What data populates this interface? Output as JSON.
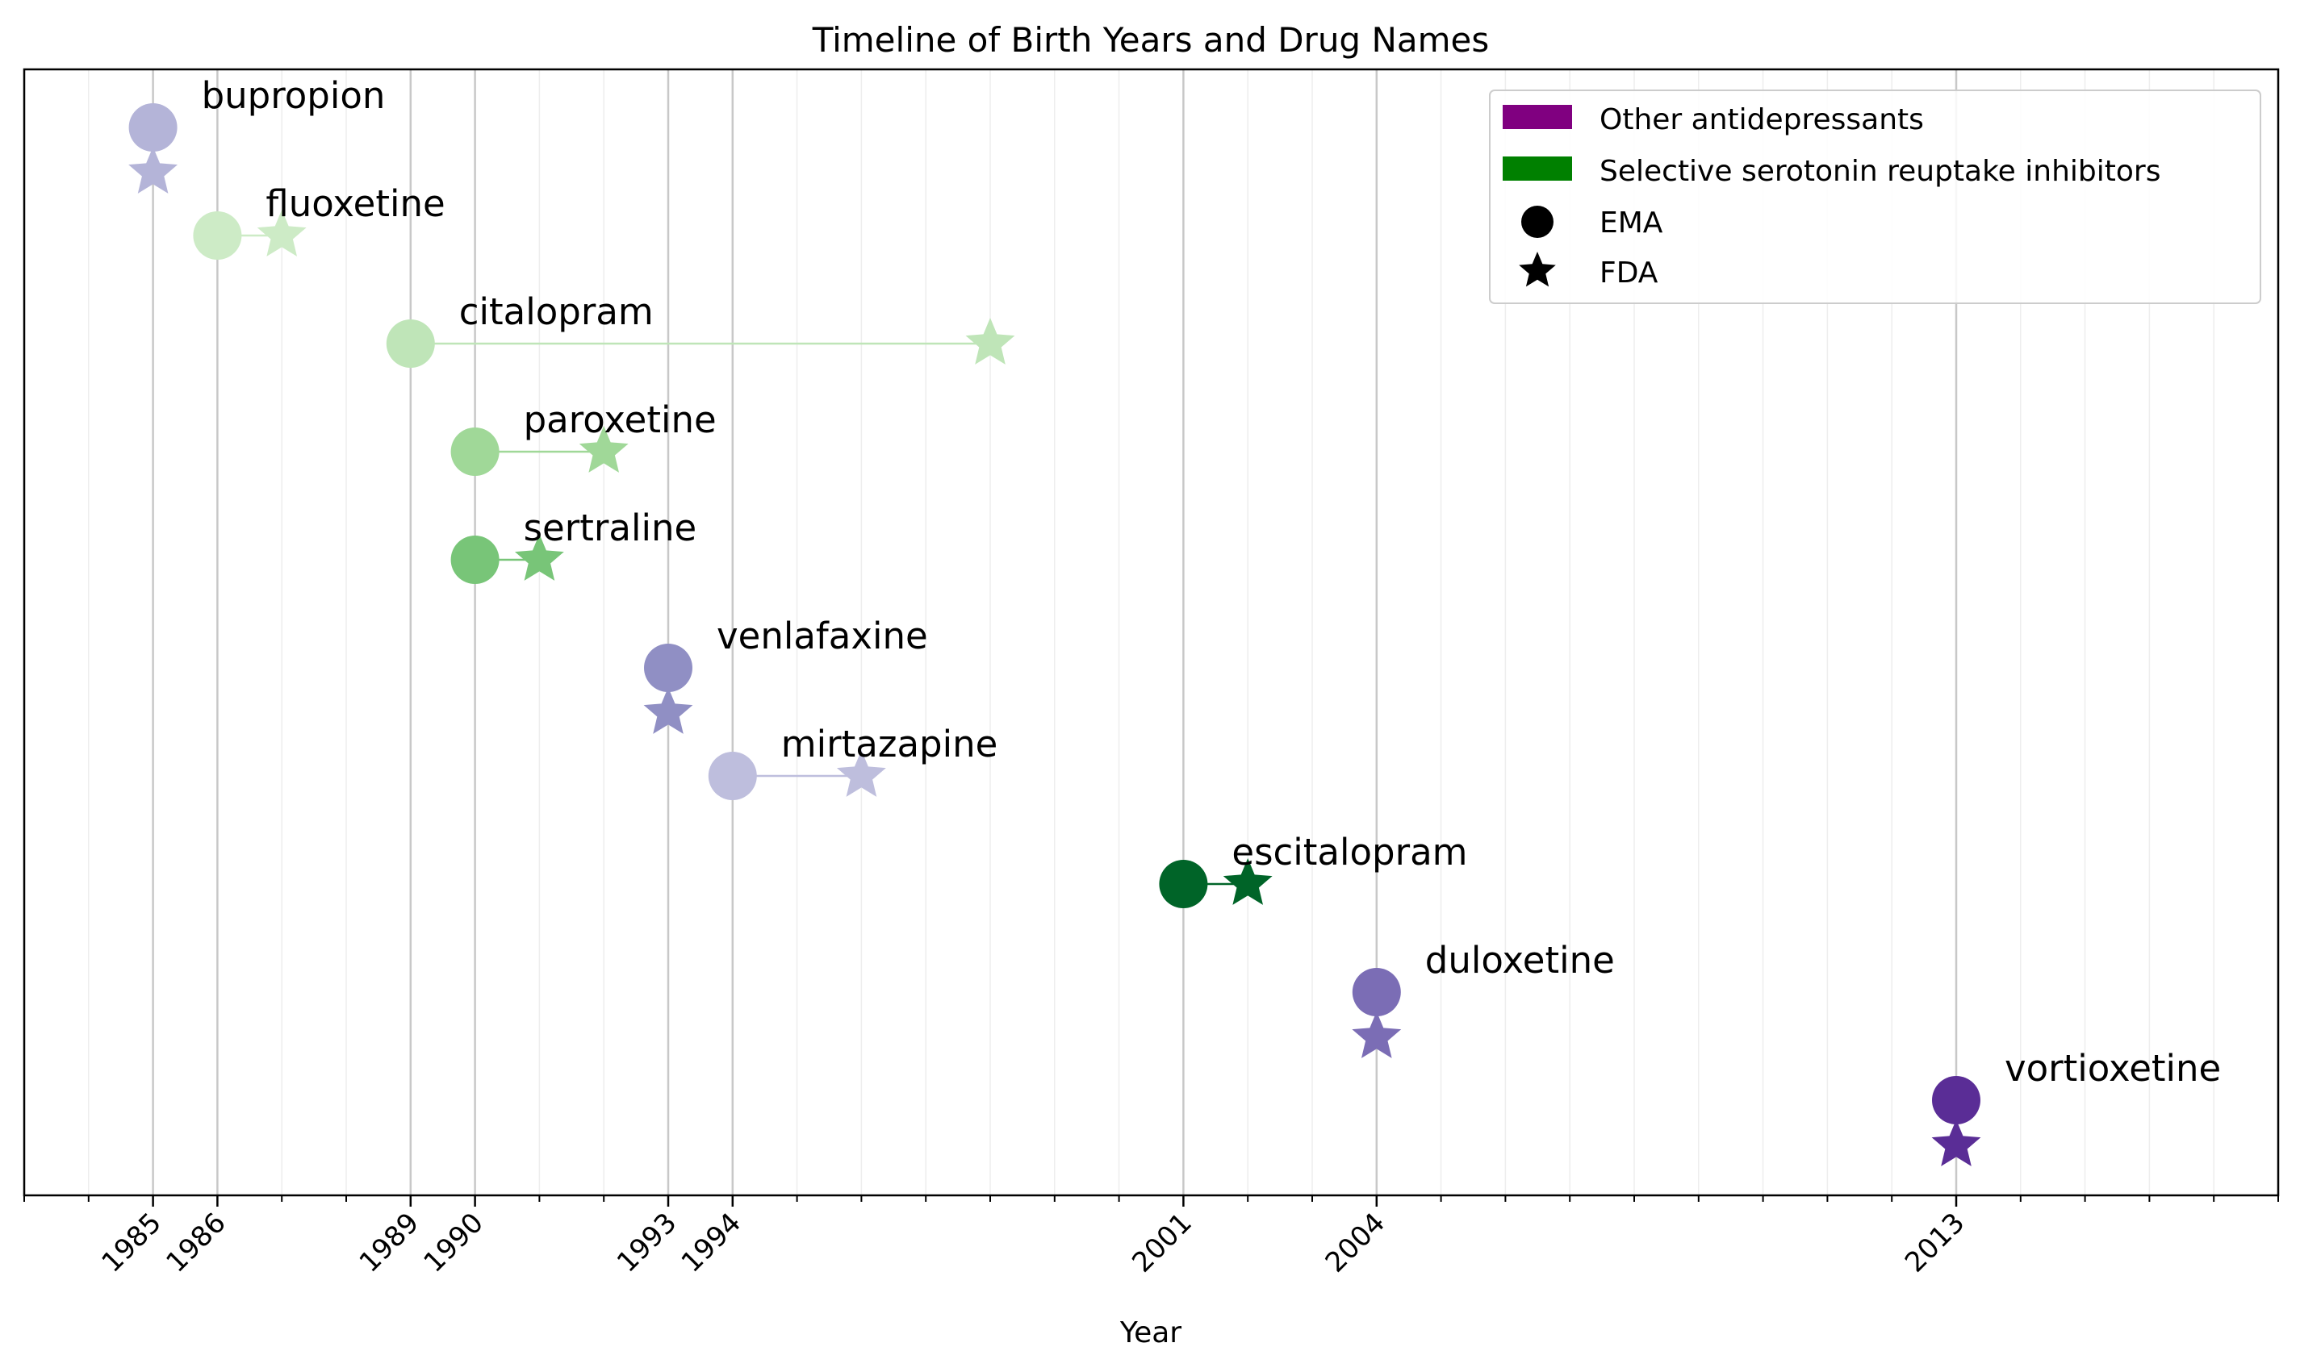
{
  "chart_data": {
    "type": "scatter",
    "title": "Timeline of Birth Years and Drug Names",
    "xlabel": "Year",
    "ylabel": "",
    "xlim": [
      1983,
      2018
    ],
    "x_ticks": [
      "1985",
      "1986",
      "1989",
      "1990",
      "1993",
      "1994",
      "2001",
      "2004",
      "2013"
    ],
    "grid": "vertical",
    "legend_position": "top-right",
    "legend": [
      {
        "label": "Other antidepressants",
        "kind": "patch",
        "color": "#800080"
      },
      {
        "label": "Selective serotonin reuptake inhibitors",
        "kind": "patch",
        "color": "#008000"
      },
      {
        "label": "EMA",
        "kind": "circle",
        "color": "#000000"
      },
      {
        "label": "FDA",
        "kind": "star",
        "color": "#000000"
      }
    ],
    "drugs": [
      {
        "name": "bupropion",
        "group": "Other antidepressants",
        "ema": 1985,
        "fda": 1985,
        "color": "#b4b4d8"
      },
      {
        "name": "fluoxetine",
        "group": "Selective serotonin reuptake inhibitors",
        "ema": 1986,
        "fda": 1987,
        "color": "#cdebc6"
      },
      {
        "name": "citalopram",
        "group": "Selective serotonin reuptake inhibitors",
        "ema": 1989,
        "fda": 1998,
        "color": "#bfe5b8"
      },
      {
        "name": "paroxetine",
        "group": "Selective serotonin reuptake inhibitors",
        "ema": 1990,
        "fda": 1992,
        "color": "#a0d898"
      },
      {
        "name": "sertraline",
        "group": "Selective serotonin reuptake inhibitors",
        "ema": 1990,
        "fda": 1991,
        "color": "#78c578"
      },
      {
        "name": "venlafaxine",
        "group": "Other antidepressants",
        "ema": 1993,
        "fda": 1993,
        "color": "#908fc4"
      },
      {
        "name": "mirtazapine",
        "group": "Other antidepressants",
        "ema": 1994,
        "fda": 1996,
        "color": "#bebedd"
      },
      {
        "name": "escitalopram",
        "group": "Selective serotonin reuptake inhibitors",
        "ema": 2001,
        "fda": 2002,
        "color": "#006428"
      },
      {
        "name": "duloxetine",
        "group": "Other antidepressants",
        "ema": 2004,
        "fda": 2004,
        "color": "#7b6db5"
      },
      {
        "name": "vortioxetine",
        "group": "Other antidepressants",
        "ema": 2013,
        "fda": 2013,
        "color": "#5a2d96"
      }
    ]
  }
}
